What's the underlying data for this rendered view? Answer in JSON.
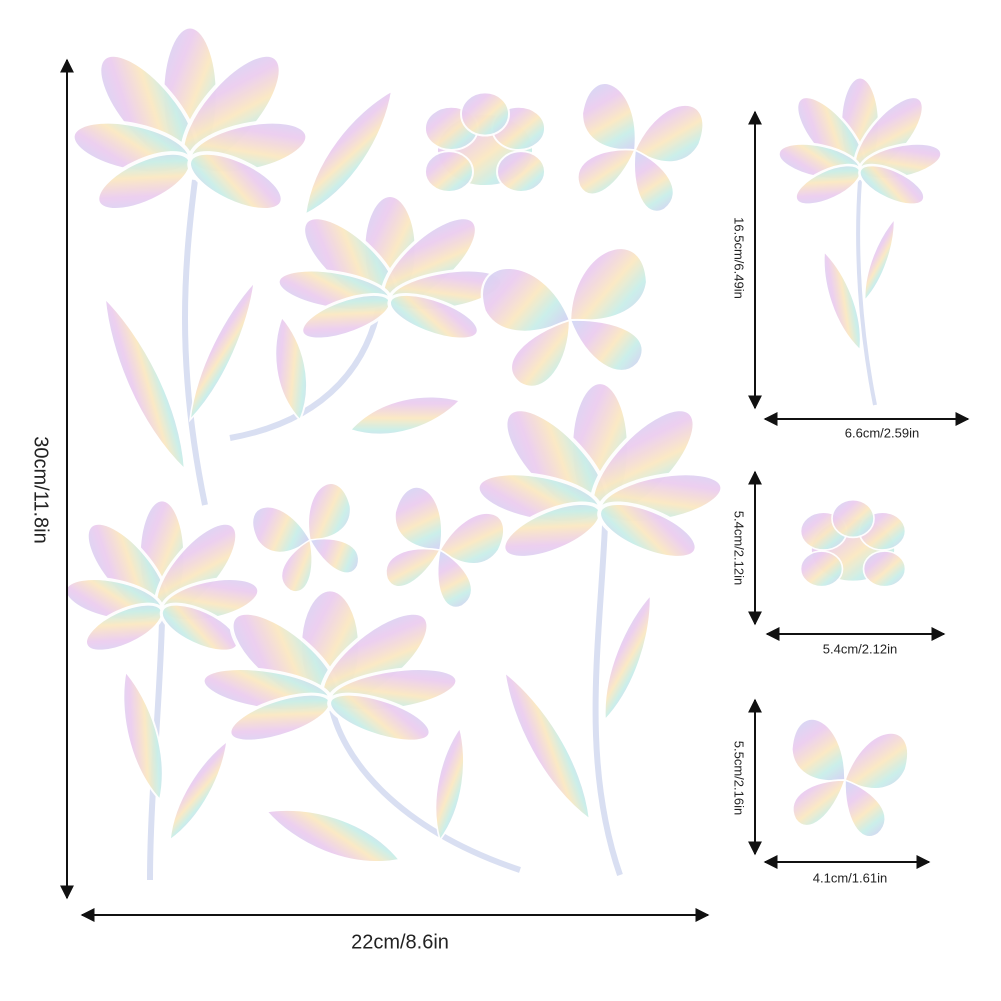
{
  "main": {
    "height_label": "30cm/11.8in",
    "width_label": "22cm/8.6in"
  },
  "details": [
    {
      "height_label": "16.5cm/6.49in",
      "width_label": "6.6cm/2.59in"
    },
    {
      "height_label": "5.4cm/2.12in",
      "width_label": "5.4cm/2.12in"
    },
    {
      "height_label": "5.5cm/2.16in",
      "width_label": "4.1cm/1.61in"
    }
  ]
}
